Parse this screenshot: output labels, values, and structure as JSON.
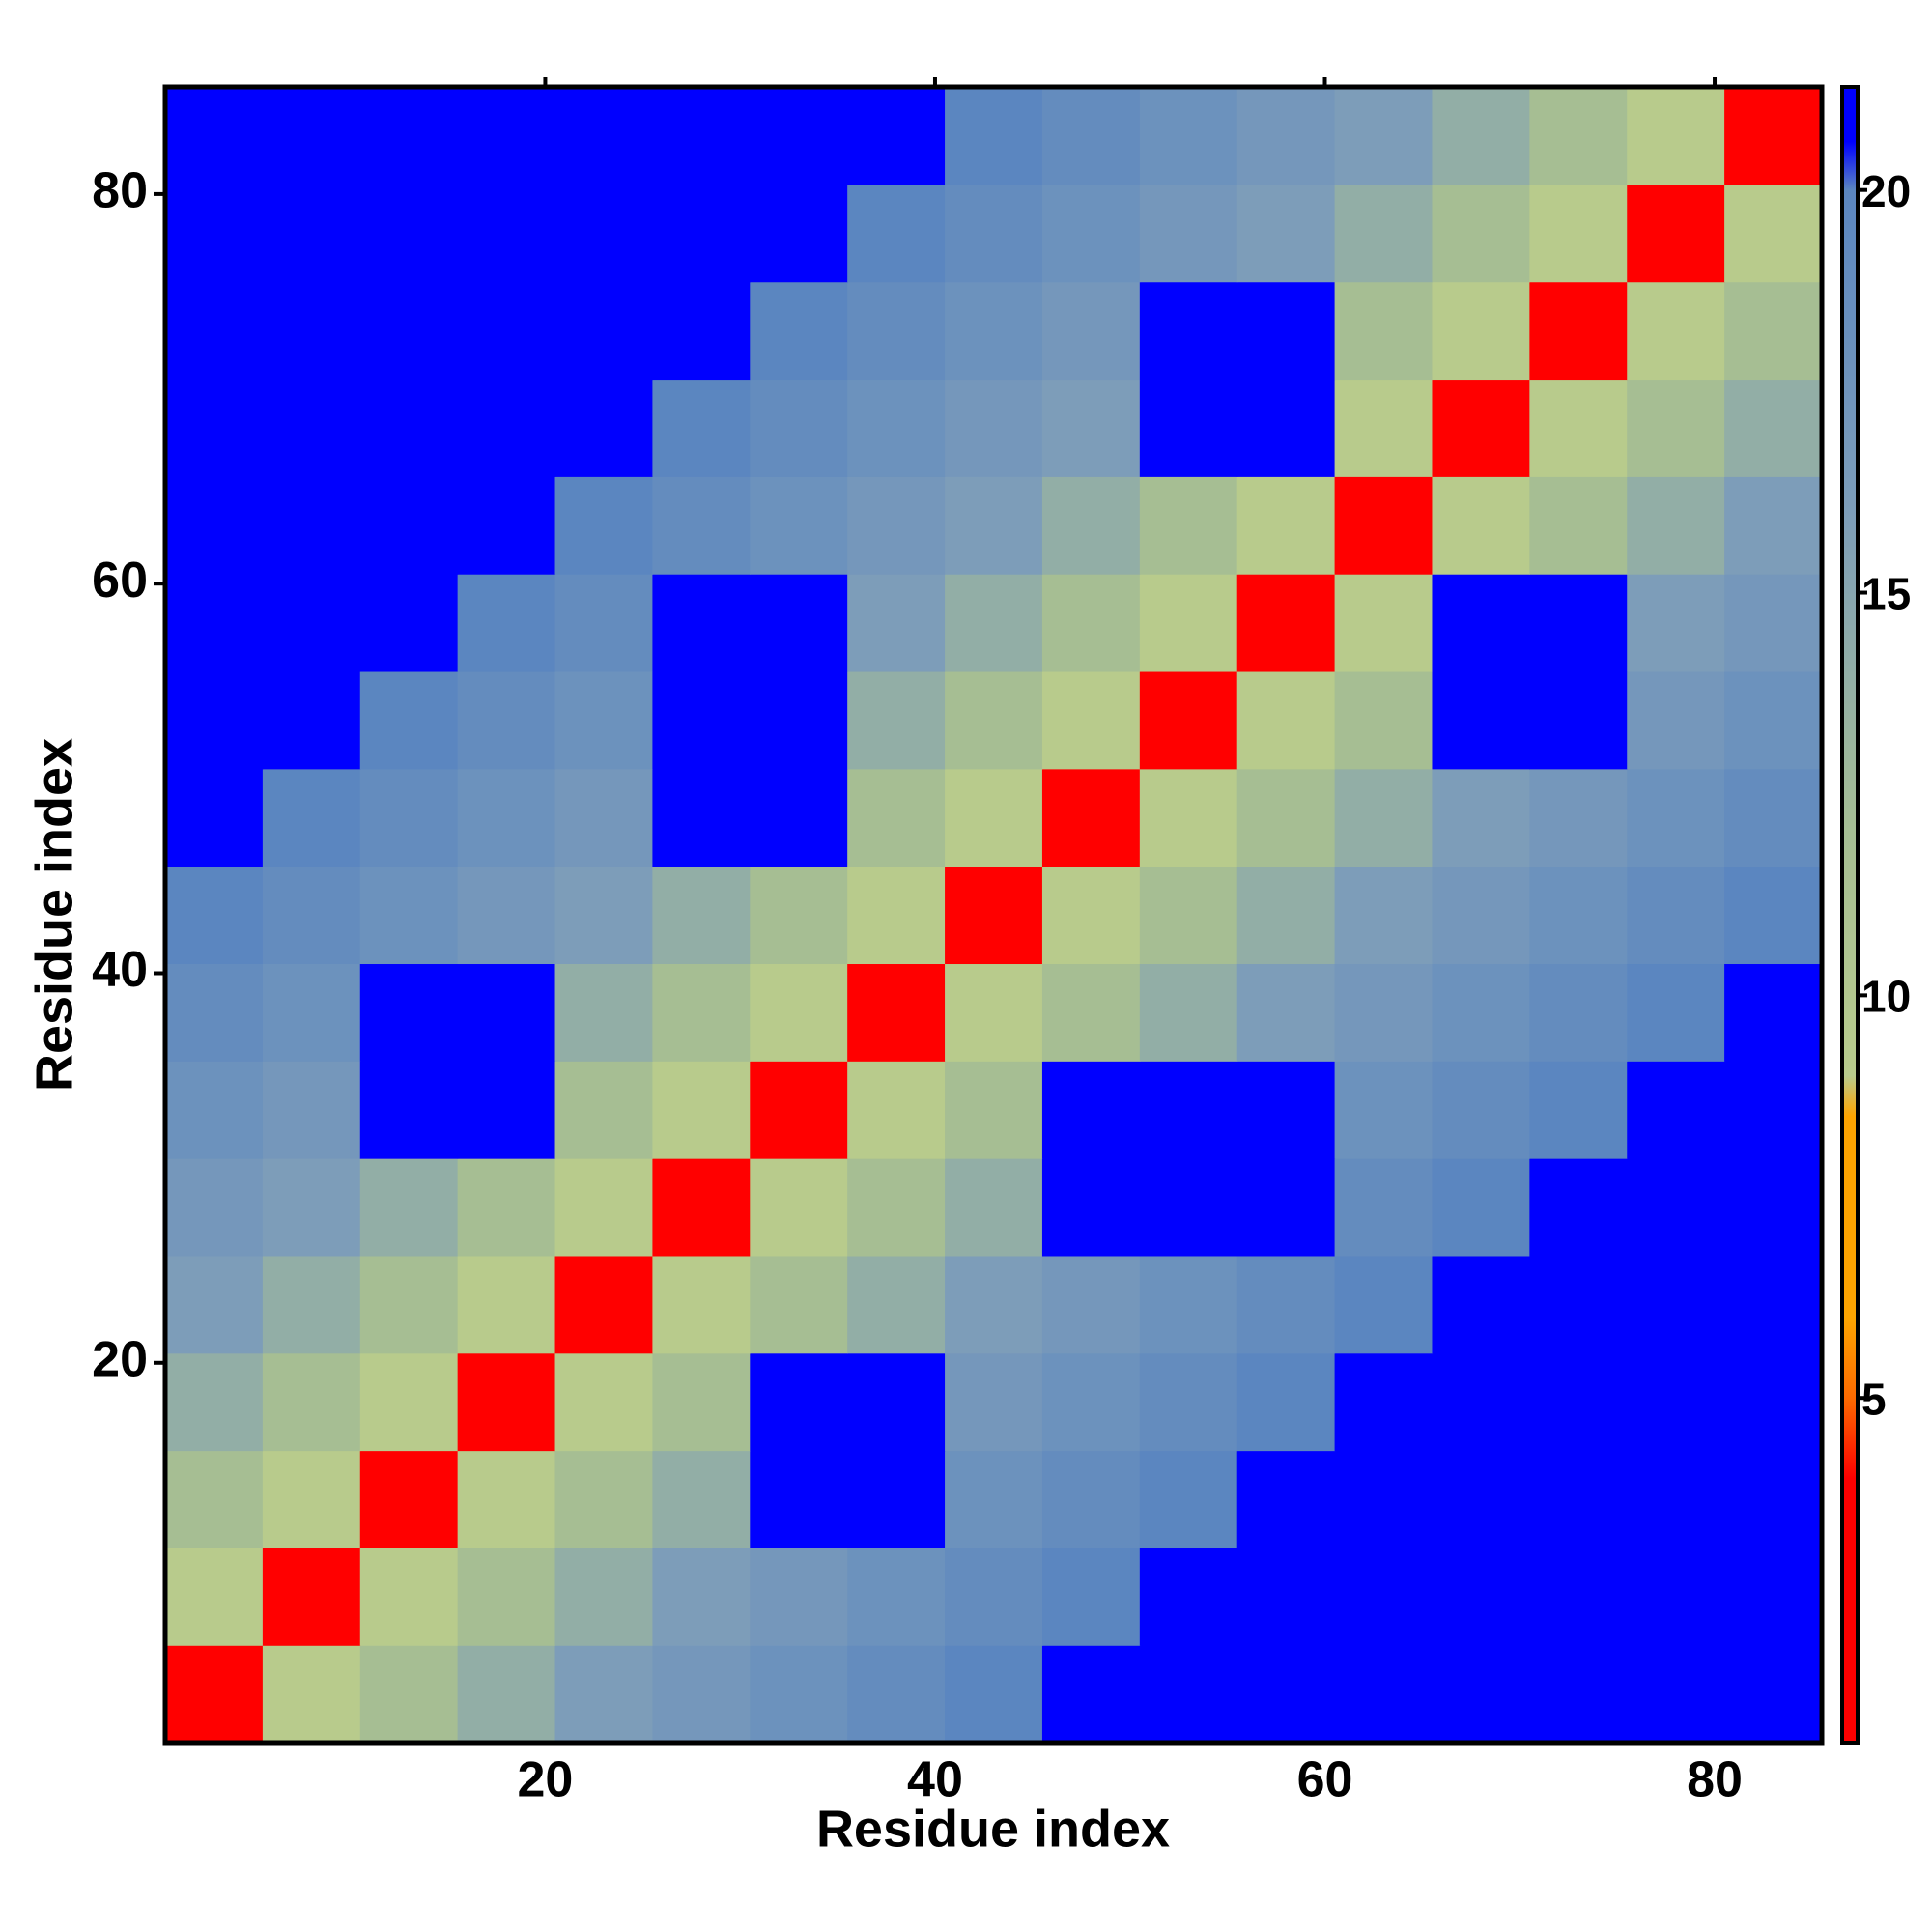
{
  "chart_data": {
    "type": "heatmap",
    "x_label": "Residue index",
    "y_label": "Residue index",
    "x_bins": [
      0.5,
      5.5,
      10.5,
      15.5,
      20.5,
      25.5,
      30.5,
      35.5,
      40.5,
      45.5,
      50.5,
      55.5,
      60.5,
      65.5,
      70.5,
      75.5,
      80.5,
      85.5
    ],
    "y_bins": [
      0.5,
      5.5,
      10.5,
      15.5,
      20.5,
      25.5,
      30.5,
      35.5,
      40.5,
      45.5,
      50.5,
      55.5,
      60.5,
      65.5,
      70.5,
      75.5,
      80.5,
      85.5
    ],
    "values": [
      [
        3,
        9,
        12,
        14,
        16,
        17,
        18,
        19,
        20,
        21,
        21,
        21,
        21,
        21,
        21,
        21,
        21
      ],
      [
        9,
        3,
        9,
        12,
        14,
        16,
        17,
        18,
        19,
        20,
        21,
        21,
        21,
        21,
        21,
        21,
        21
      ],
      [
        12,
        9,
        3,
        9,
        12,
        14,
        21,
        21,
        18,
        19,
        20,
        21,
        21,
        21,
        21,
        21,
        21
      ],
      [
        14,
        12,
        9,
        3,
        9,
        12,
        21,
        21,
        17,
        18,
        19,
        20,
        21,
        21,
        21,
        21,
        21
      ],
      [
        16,
        14,
        12,
        9,
        3,
        9,
        12,
        14,
        16,
        17,
        18,
        19,
        20,
        21,
        21,
        21,
        21
      ],
      [
        17,
        16,
        14,
        12,
        9,
        3,
        9,
        12,
        14,
        21,
        21,
        21,
        19,
        20,
        21,
        21,
        21
      ],
      [
        18,
        17,
        21,
        21,
        12,
        9,
        3,
        9,
        12,
        21,
        21,
        21,
        18,
        19,
        20,
        21,
        21
      ],
      [
        19,
        18,
        21,
        21,
        14,
        12,
        9,
        3,
        9,
        12,
        14,
        16,
        17,
        18,
        19,
        20,
        21
      ],
      [
        20,
        19,
        18,
        17,
        16,
        14,
        12,
        9,
        3,
        9,
        12,
        14,
        16,
        17,
        18,
        19,
        20
      ],
      [
        21,
        20,
        19,
        18,
        17,
        21,
        21,
        12,
        9,
        3,
        9,
        12,
        14,
        16,
        17,
        18,
        19
      ],
      [
        21,
        21,
        20,
        19,
        18,
        21,
        21,
        14,
        12,
        9,
        3,
        9,
        12,
        21,
        21,
        17,
        18
      ],
      [
        21,
        21,
        21,
        20,
        19,
        21,
        21,
        16,
        14,
        12,
        9,
        3,
        9,
        21,
        21,
        16,
        17
      ],
      [
        21,
        21,
        21,
        21,
        20,
        19,
        18,
        17,
        16,
        14,
        12,
        9,
        3,
        9,
        12,
        14,
        16
      ],
      [
        21,
        21,
        21,
        21,
        21,
        20,
        19,
        18,
        17,
        16,
        21,
        21,
        9,
        3,
        9,
        12,
        14
      ],
      [
        21,
        21,
        21,
        21,
        21,
        21,
        20,
        19,
        18,
        17,
        21,
        21,
        12,
        9,
        3,
        9,
        12
      ],
      [
        21,
        21,
        21,
        21,
        21,
        21,
        21,
        20,
        19,
        18,
        17,
        16,
        14,
        12,
        9,
        3,
        9
      ],
      [
        21,
        21,
        21,
        21,
        21,
        21,
        21,
        21,
        20,
        19,
        18,
        17,
        16,
        14,
        12,
        9,
        3
      ]
    ],
    "xlim": [
      0.5,
      85.5
    ],
    "ylim": [
      0.5,
      85.5
    ],
    "xticks": [
      20,
      40,
      60,
      80
    ],
    "yticks": [
      20,
      40,
      60,
      80
    ],
    "colorbar": {
      "lim": [
        0.72,
        21.28
      ],
      "ticks": [
        5,
        10,
        15,
        20
      ],
      "stops": [
        {
          "value": 0.72,
          "color": "#ff0000"
        },
        {
          "value": 4,
          "color": "#ff0000"
        },
        {
          "value": 5,
          "color": "#ff6a00"
        },
        {
          "value": 6,
          "color": "#ffa500"
        },
        {
          "value": 8.5,
          "color": "#ffa500"
        },
        {
          "value": 9,
          "color": "#b8cb8c"
        },
        {
          "value": 12,
          "color": "#a6be93"
        },
        {
          "value": 16,
          "color": "#7d9db9"
        },
        {
          "value": 20,
          "color": "#5b86c0"
        },
        {
          "value": 20.6,
          "color": "#0000ff"
        },
        {
          "value": 21.28,
          "color": "#0000ff"
        }
      ]
    }
  }
}
